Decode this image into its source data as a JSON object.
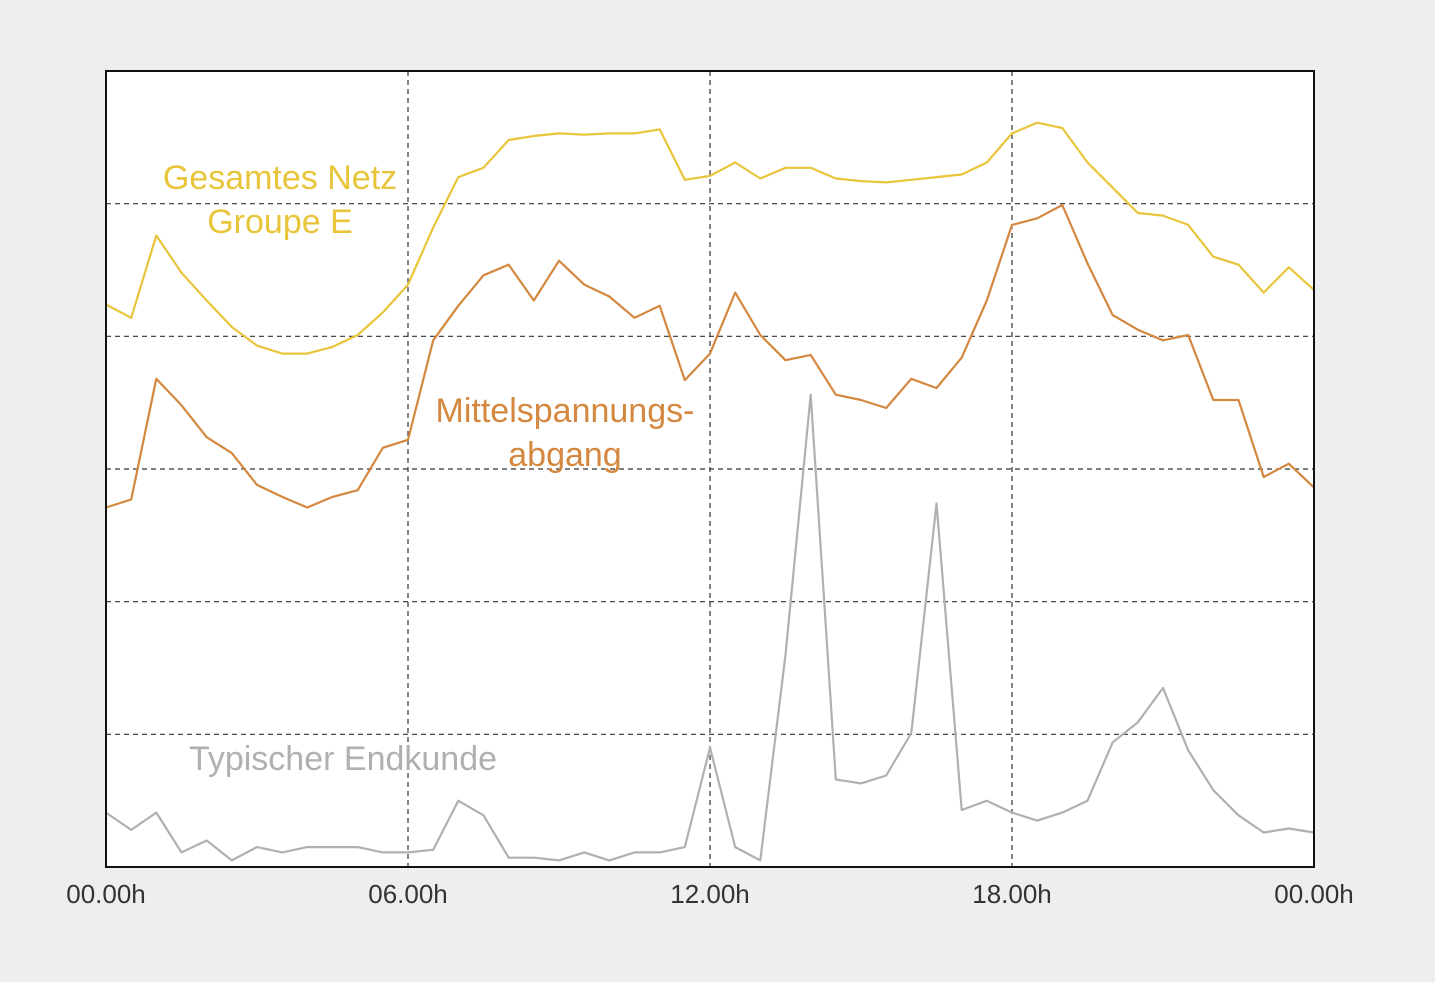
{
  "chart_data": {
    "type": "line",
    "x": [
      0,
      0.5,
      1,
      1.5,
      2,
      2.5,
      3,
      3.5,
      4,
      4.5,
      5,
      5.5,
      6,
      6.5,
      7,
      7.5,
      8,
      8.5,
      9,
      9.5,
      10,
      10.5,
      11,
      11.5,
      12,
      12.5,
      13,
      13.5,
      14,
      14.5,
      15,
      15.5,
      16,
      16.5,
      17,
      17.5,
      18,
      18.5,
      19,
      19.5,
      20,
      20.5,
      21,
      21.5,
      22,
      22.5,
      23,
      23.5,
      24
    ],
    "series": [
      {
        "name": [
          "Gesamtes Netz",
          "Groupe E"
        ],
        "color": "#e8c53a",
        "values": [
          4.24,
          4.14,
          4.76,
          4.48,
          4.27,
          4.07,
          3.93,
          3.87,
          3.87,
          3.92,
          4.01,
          4.18,
          4.39,
          4.82,
          5.2,
          5.27,
          5.48,
          5.51,
          5.53,
          5.52,
          5.53,
          5.53,
          5.56,
          5.18,
          5.21,
          5.31,
          5.19,
          5.27,
          5.27,
          5.19,
          5.17,
          5.16,
          5.18,
          5.2,
          5.22,
          5.31,
          5.53,
          5.61,
          5.57,
          5.31,
          5.12,
          4.93,
          4.91,
          4.84,
          4.6,
          4.54,
          4.33,
          4.52,
          4.35
        ]
      },
      {
        "name": [
          "Mittelspannungs-",
          "abgang"
        ],
        "color": "#d4873f",
        "values": [
          2.71,
          2.77,
          3.68,
          3.48,
          3.24,
          3.12,
          2.88,
          2.79,
          2.71,
          2.79,
          2.84,
          3.16,
          3.22,
          3.97,
          4.23,
          4.46,
          4.54,
          4.27,
          4.57,
          4.39,
          4.3,
          4.14,
          4.23,
          3.67,
          3.87,
          4.33,
          4.01,
          3.82,
          3.86,
          3.56,
          3.52,
          3.46,
          3.68,
          3.61,
          3.84,
          4.27,
          4.84,
          4.89,
          4.99,
          4.55,
          4.16,
          4.05,
          3.97,
          4.01,
          3.52,
          3.52,
          2.94,
          3.04,
          2.86
        ]
      },
      {
        "name": [
          "Typischer Endkunde"
        ],
        "color": "#b0b0b0",
        "values": [
          0.41,
          0.28,
          0.41,
          0.11,
          0.2,
          0.05,
          0.15,
          0.11,
          0.15,
          0.15,
          0.15,
          0.11,
          0.11,
          0.13,
          0.5,
          0.39,
          0.07,
          0.07,
          0.05,
          0.11,
          0.05,
          0.11,
          0.11,
          0.15,
          0.9,
          0.15,
          0.05,
          1.6,
          3.56,
          0.66,
          0.63,
          0.69,
          1.01,
          2.74,
          0.43,
          0.5,
          0.41,
          0.35,
          0.41,
          0.5,
          0.94,
          1.09,
          1.35,
          0.88,
          0.58,
          0.39,
          0.26,
          0.29,
          0.26
        ]
      }
    ],
    "xlim": [
      0,
      24
    ],
    "xticks": [
      {
        "value": 0,
        "label": "00.00h"
      },
      {
        "value": 6,
        "label": "06.00h"
      },
      {
        "value": 12,
        "label": "12.00h"
      },
      {
        "value": 18,
        "label": "18.00h"
      },
      {
        "value": 24,
        "label": "00.00h"
      }
    ],
    "ylim": [
      0,
      6
    ],
    "yticks": [
      1,
      2,
      3,
      4,
      5
    ],
    "grid": true
  }
}
